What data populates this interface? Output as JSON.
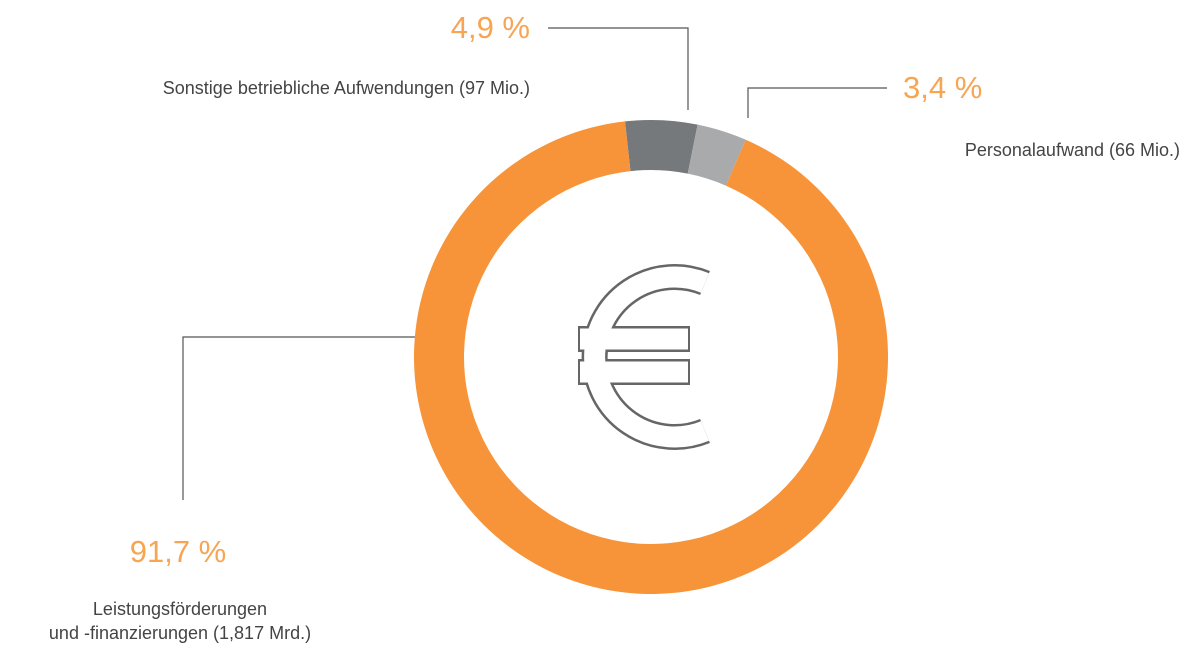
{
  "chart_data": {
    "type": "pie",
    "categories": [
      "Sonstige betriebliche Aufwendungen (97 Mio.)",
      "Personalaufwand (66 Mio.)",
      "Leistungsförderungen\nund -finanzierungen (1,817 Mrd.)"
    ],
    "values": [
      4.9,
      3.4,
      91.7
    ],
    "value_labels": [
      "4,9 %",
      "3,4 %",
      "91,7 %"
    ],
    "colors": [
      "#75797c",
      "#a8aaac",
      "#f7943a"
    ]
  }
}
